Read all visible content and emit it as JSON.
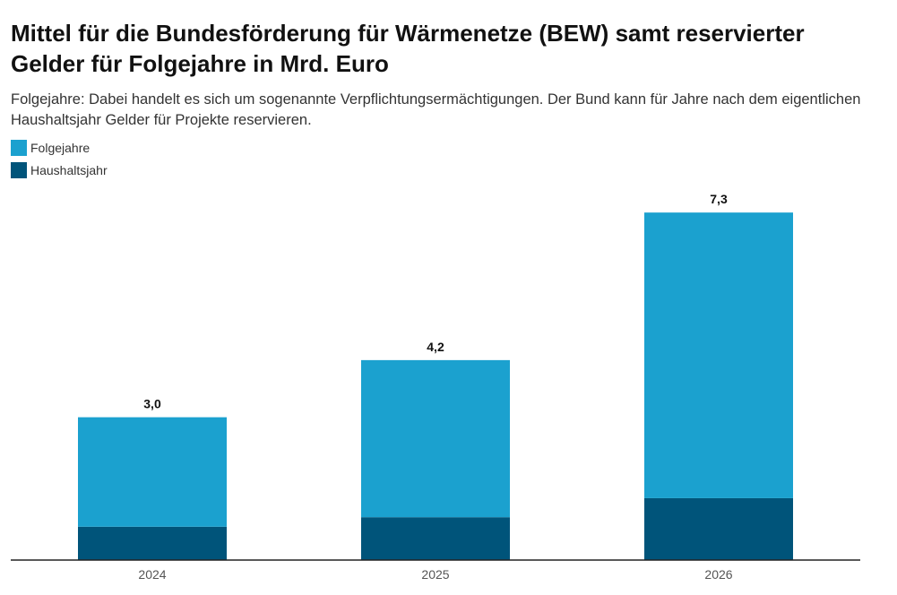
{
  "chart_data": {
    "type": "bar",
    "stacked": true,
    "title": "Mittel für die Bundesförderung für Wärmenetze (BEW) samt reservierter Gelder für Folgejahre in Mrd. Euro",
    "subtitle": "Folgejahre: Dabei handelt es sich um sogenannte Verpflichtungsermächtigungen. Der Bund kann für Jahre nach dem eigentlichen Haushaltsjahr Gelder für Projekte reservieren.",
    "categories": [
      "2024",
      "2025",
      "2026"
    ],
    "series": [
      {
        "name": "Haushaltsjahr",
        "color": "#00547a",
        "values": [
          0.7,
          0.9,
          1.3
        ]
      },
      {
        "name": "Folgejahre",
        "color": "#1ba1cf",
        "values": [
          2.3,
          3.3,
          6.0
        ]
      }
    ],
    "totals": [
      3.0,
      4.2,
      7.3
    ],
    "total_labels": [
      "3,0",
      "4,2",
      "7,3"
    ],
    "legend": [
      {
        "name": "Folgejahre",
        "color": "#1ba1cf"
      },
      {
        "name": "Haushaltsjahr",
        "color": "#00547a"
      }
    ],
    "ylim": [
      0,
      8
    ],
    "grid": false,
    "legend_position": "top-left"
  }
}
